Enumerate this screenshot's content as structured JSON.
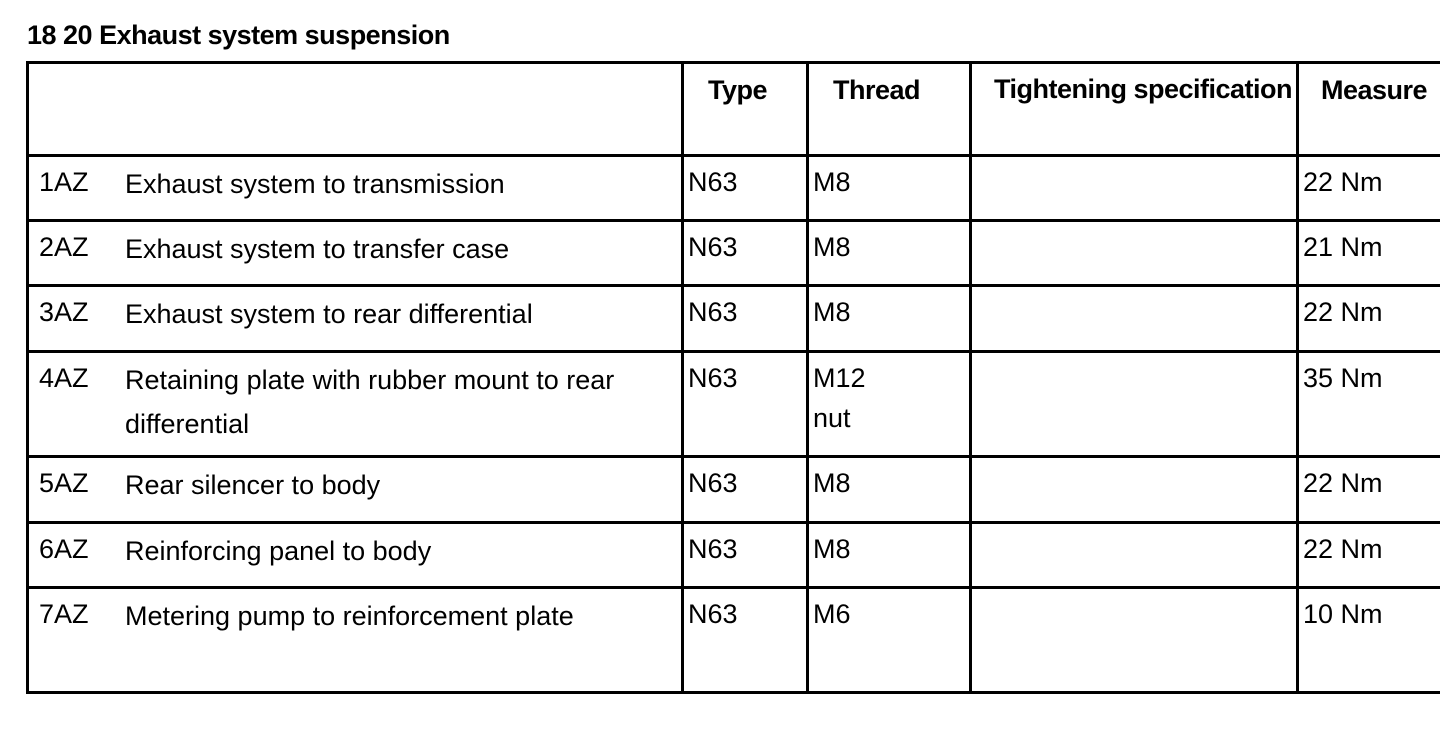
{
  "title": "18 20 Exhaust system suspension",
  "table": {
    "headers": [
      "",
      "Type",
      "Thread",
      "Tightening specification",
      "Measure"
    ],
    "rows": [
      {
        "id": "1AZ",
        "description": "Exhaust system to transmission",
        "type": "N63",
        "thread": "M8",
        "spec": "",
        "measure": "22 Nm"
      },
      {
        "id": "2AZ",
        "description": "Exhaust system to transfer case",
        "type": "N63",
        "thread": "M8",
        "spec": "",
        "measure": "21 Nm"
      },
      {
        "id": "3AZ",
        "description": "Exhaust system to rear differential",
        "type": "N63",
        "thread": "M8",
        "spec": "",
        "measure": "22 Nm"
      },
      {
        "id": "4AZ",
        "description": "Retaining plate with rubber mount to rear differential",
        "type": "N63",
        "thread": "M12 nut",
        "spec": "",
        "measure": "35 Nm"
      },
      {
        "id": "5AZ",
        "description": "Rear silencer to body",
        "type": "N63",
        "thread": "M8",
        "spec": "",
        "measure": "22 Nm"
      },
      {
        "id": "6AZ",
        "description": "Reinforcing panel to body",
        "type": "N63",
        "thread": "M8",
        "spec": "",
        "measure": "22 Nm"
      },
      {
        "id": "7AZ",
        "description": "Metering pump to reinforcement plate",
        "type": "N63",
        "thread": "M6",
        "spec": "",
        "measure": "10 Nm"
      }
    ]
  }
}
